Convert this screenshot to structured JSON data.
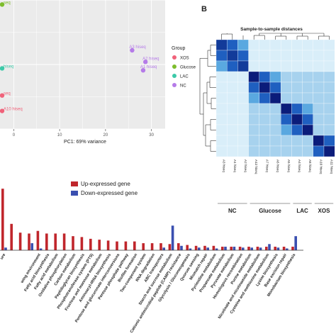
{
  "chart_data": [
    {
      "type": "scatter",
      "xlabel": "PC1: 69% variance",
      "xticks": [
        "0",
        "10",
        "20",
        "30"
      ],
      "xlim": [
        -3,
        33
      ],
      "ylim": [
        -10,
        10
      ],
      "legend": {
        "title": "Group",
        "placement": "right",
        "entries": [
          {
            "name": "XOS",
            "color": "#f0627a"
          },
          {
            "name": "Glucose",
            "color": "#7dbd2c"
          },
          {
            "name": "LAC",
            "color": "#3cc9a8"
          },
          {
            "name": "NC",
            "color": "#b57be8"
          }
        ]
      },
      "points": [
        {
          "label": "A3 hiseq",
          "group": "NC",
          "x": 25.8,
          "y": 2.2
        },
        {
          "label": "A2 hiseq",
          "group": "NC",
          "x": 28.7,
          "y": 0.4
        },
        {
          "label": "A1 hiseq",
          "group": "NC",
          "x": 28.2,
          "y": -0.9
        },
        {
          "label": "seq",
          "group": "Glucose",
          "x": -3.2,
          "y": 9.3
        },
        {
          "label": "hiseq",
          "group": "LAC",
          "x": -3.2,
          "y": -0.6
        },
        {
          "label": "seq",
          "group": "XOS",
          "x": -3.2,
          "y": -4.8
        },
        {
          "label": "A10 hiseq",
          "group": "XOS",
          "x": -3.2,
          "y": -7.2
        }
      ],
      "grid": true
    },
    {
      "type": "heatmap",
      "panel_label": "B",
      "title": "Sample-to-sample distances",
      "col_labels": [
        "A3 hiseq",
        "A1 hiseq",
        "A2 hiseq",
        "A12 hiseq",
        "A7 hiseq",
        "A6 hiseq",
        "A5 hiseq",
        "A4 hiseq",
        "A8 hiseq",
        "A10 hiseq",
        "A11 hiseq"
      ],
      "group_labels": [
        "NC",
        "Glucose",
        "LAC",
        "XOS"
      ]
    },
    {
      "type": "bar",
      "series": [
        {
          "name": "Up-expressed gene",
          "color": "#c0262c"
        },
        {
          "name": "Down-expressed gene",
          "color": "#3a4fb0"
        }
      ],
      "categories": [
        "ure",
        "",
        "",
        "",
        "wing environment",
        "Fatty acid biosynthesis",
        "Fatty acid metabolism",
        "Oxidative phosphorylation",
        "Carbon metabolism",
        "Peptidoglycan biosynthesis",
        "Phosphotransferase system (PTS)",
        "Fructose and mannose metabolism",
        "Aminoacyl-tRNA biosynthesis",
        "Pentose and glucuronate interconversions",
        "Pentose phosphate pathway",
        "Biofilm formation",
        "Two-component system",
        "RNA degradation",
        "ABC transporters",
        "Starch and sucrose metabolism",
        "Cationic antimicrobial peptide (CAMP) resistance",
        "Glycolysis / Gluconeogenesis",
        "Quorum sensing",
        "Mismatch repair",
        "Pyrimidine metabolism",
        "Propanoate metabolism",
        "Pyruvate metabolism",
        "Homologous recombination",
        "Purine metabolism",
        "Nicotinate and nicotinamide metabolism",
        "Cysteine and methionine metabolism",
        "Lysine biosynthesis",
        "Base excision repair",
        "Monobactam biosynthesis"
      ],
      "up": [
        70,
        30,
        20,
        19,
        22,
        19,
        19,
        19,
        16,
        15,
        13,
        12,
        11,
        10,
        10,
        10,
        8,
        8,
        8,
        7,
        8,
        6,
        5,
        5,
        5,
        4,
        4,
        4,
        4,
        4,
        4,
        4,
        4,
        4
      ],
      "down": [
        3,
        0,
        0,
        8,
        2,
        0,
        0,
        0,
        0,
        0,
        0,
        0,
        0,
        0,
        0,
        0,
        0,
        0,
        3,
        28,
        5,
        2,
        3,
        3,
        2,
        4,
        4,
        3,
        3,
        3,
        7,
        3,
        2,
        16
      ],
      "ylim": [
        0,
        75
      ],
      "legend_placement": "top-right"
    }
  ]
}
